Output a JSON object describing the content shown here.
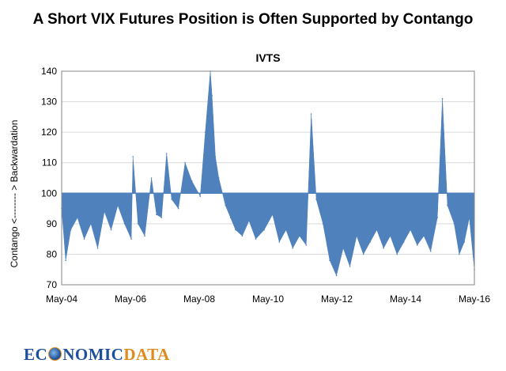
{
  "page_title": "A Short VIX Futures Position is Often Supported by Contango",
  "logo": {
    "part1": "EC",
    "part2": "NOMIC",
    "part3": "DATA"
  },
  "chart_data": {
    "type": "area",
    "title": "IVTS",
    "xlabel": "",
    "ylabel": "Contango <-------- > Backwardation",
    "ylim": [
      70,
      140
    ],
    "yticks": [
      70,
      80,
      90,
      100,
      110,
      120,
      130,
      140
    ],
    "baseline": 100,
    "x_tick_labels": [
      "May-04",
      "May-06",
      "May-08",
      "May-10",
      "May-12",
      "May-14",
      "May-16"
    ],
    "xlim_years": [
      2004.33,
      2016.6
    ],
    "fill_color": "#4f81bd",
    "series": [
      {
        "name": "IVTS",
        "x": [
          2004.33,
          2004.45,
          2004.6,
          2004.8,
          2005.0,
          2005.2,
          2005.4,
          2005.6,
          2005.8,
          2006.0,
          2006.2,
          2006.4,
          2006.45,
          2006.6,
          2006.8,
          2007.0,
          2007.15,
          2007.3,
          2007.45,
          2007.6,
          2007.8,
          2008.0,
          2008.2,
          2008.45,
          2008.6,
          2008.75,
          2008.8,
          2008.9,
          2009.0,
          2009.2,
          2009.35,
          2009.5,
          2009.7,
          2009.9,
          2010.1,
          2010.35,
          2010.6,
          2010.8,
          2011.0,
          2011.2,
          2011.4,
          2011.6,
          2011.75,
          2011.9,
          2012.1,
          2012.3,
          2012.5,
          2012.7,
          2012.9,
          2013.1,
          2013.3,
          2013.5,
          2013.7,
          2013.9,
          2014.1,
          2014.3,
          2014.5,
          2014.7,
          2014.9,
          2015.1,
          2015.3,
          2015.5,
          2015.65,
          2015.8,
          2016.0,
          2016.15,
          2016.3,
          2016.45,
          2016.6
        ],
        "values": [
          95,
          78,
          88,
          92,
          85,
          90,
          82,
          94,
          88,
          96,
          90,
          85,
          112,
          90,
          86,
          105,
          93,
          92,
          113,
          98,
          95,
          110,
          104,
          99,
          120,
          140,
          132,
          112,
          105,
          96,
          92,
          88,
          86,
          91,
          85,
          88,
          93,
          84,
          88,
          82,
          86,
          83,
          126,
          98,
          90,
          78,
          73,
          82,
          76,
          86,
          80,
          84,
          88,
          82,
          86,
          80,
          84,
          88,
          83,
          86,
          81,
          92,
          131,
          96,
          90,
          80,
          84,
          92,
          75
        ]
      }
    ]
  }
}
